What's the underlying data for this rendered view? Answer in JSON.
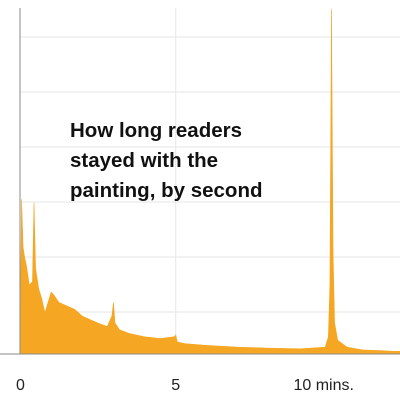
{
  "chart_data": {
    "type": "area",
    "title": "How long readers stayed with the painting, by second",
    "xlabel": "",
    "ylabel": "",
    "x_unit": "mins",
    "xlim": [
      0,
      12.2
    ],
    "ylim": [
      0,
      1
    ],
    "x_ticks": [
      {
        "value": 0,
        "label": "0"
      },
      {
        "value": 5,
        "label": "5"
      },
      {
        "value": 10,
        "label": "10 mins."
      }
    ],
    "grid": true,
    "color": "#f5a623",
    "series": [
      {
        "x": [
          0,
          0.05,
          0.1,
          0.15,
          0.2,
          0.3,
          0.4,
          0.45,
          0.5,
          0.6,
          0.7,
          0.8,
          0.9,
          1.0,
          1.1,
          1.25,
          1.5,
          1.75,
          2.0,
          2.25,
          2.5,
          2.8,
          2.95,
          3.0,
          3.05,
          3.2,
          3.5,
          4.0,
          4.5,
          4.95,
          5.0,
          5.05,
          5.3,
          6.0,
          7.0,
          8.0,
          9.0,
          9.8,
          9.9,
          9.95,
          10.0,
          10.05,
          10.1,
          10.2,
          10.5,
          11.0,
          11.5,
          12.0,
          12.2
        ],
        "y": [
          0.0,
          0.45,
          0.31,
          0.28,
          0.26,
          0.2,
          0.21,
          0.44,
          0.25,
          0.19,
          0.16,
          0.12,
          0.15,
          0.18,
          0.17,
          0.15,
          0.14,
          0.13,
          0.11,
          0.1,
          0.09,
          0.08,
          0.11,
          0.15,
          0.09,
          0.07,
          0.06,
          0.05,
          0.045,
          0.05,
          0.055,
          0.035,
          0.03,
          0.025,
          0.02,
          0.017,
          0.015,
          0.02,
          0.05,
          0.2,
          1.0,
          0.3,
          0.09,
          0.04,
          0.02,
          0.012,
          0.01,
          0.008,
          0.008
        ]
      }
    ]
  }
}
